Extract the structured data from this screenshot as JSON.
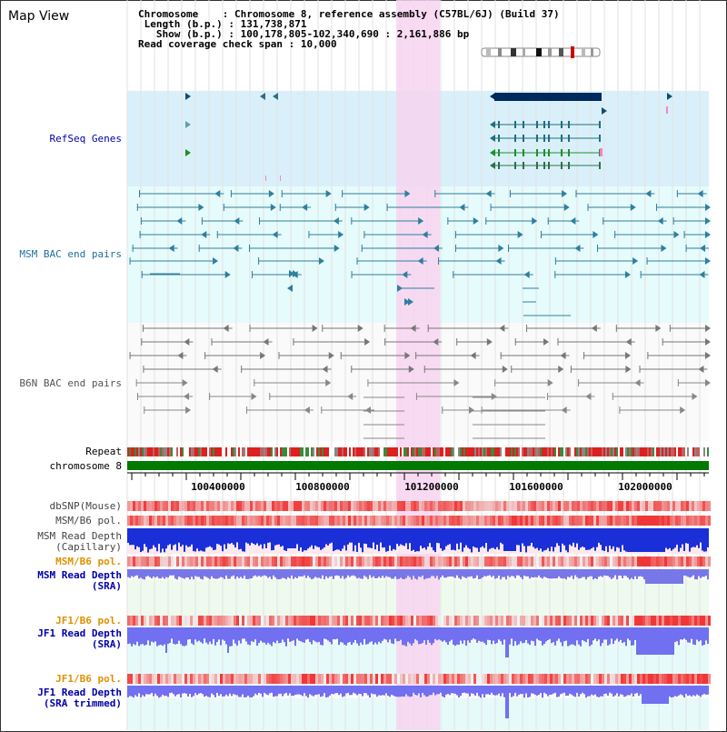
{
  "title": "Map View",
  "info": {
    "chromosome_key": "Chromosome",
    "chromosome_val": "Chromosome 8, reference assembly (C57BL/6J) (Build 37)",
    "length_key": "Length (b.p.)",
    "length_val": "131,738,871",
    "show_key": "Show (b.p.)",
    "show_val": "100,178,805-102,340,690 : 2,161,886 bp",
    "coverage_key": "Read coverage check span",
    "coverage_val": "10,000"
  },
  "tracks": {
    "refseq": "RefSeq Genes",
    "msm_bac": "MSM BAC end pairs",
    "b6n_bac": "B6N BAC end pairs",
    "repeat": "Repeat",
    "chromosome": "chromosome 8",
    "dbsnp": "dbSNP(Mouse)",
    "msm_b6_pol_1": "MSM/B6 pol.",
    "msm_depth_cap_1": "MSM Read Depth",
    "msm_depth_cap_2": "(Capillary)",
    "msm_b6_pol_2": "MSM/B6 pol.",
    "msm_depth_sra_1": "MSM Read Depth",
    "msm_depth_sra_2": "(SRA)",
    "jf1_b6_pol_1": "JF1/B6 pol.",
    "jf1_depth_sra_1": "JF1 Read Depth",
    "jf1_depth_sra_2": "(SRA)",
    "jf1_b6_pol_2": "JF1/B6 pol.",
    "jf1_depth_trim_1": "JF1 Read Depth",
    "jf1_depth_trim_2": "(SRA trimmed)"
  },
  "axis": {
    "ticks": [
      "100400000",
      "100800000",
      "101200000",
      "101600000",
      "102000000"
    ]
  },
  "colors": {
    "refseq_bg": "#d9f0fa",
    "bac_bg": "#e6fbfb",
    "highlight": "#f7d4f0",
    "gene": "#1f6f7f",
    "navy": "#002a5c",
    "chrom_green": "#007a00",
    "depth_blue": "#1a2fd8",
    "depth_light": "#8080f0",
    "pol_red": "#e83030",
    "label_blue": "#0000aa",
    "label_orange": "#e09000"
  }
}
